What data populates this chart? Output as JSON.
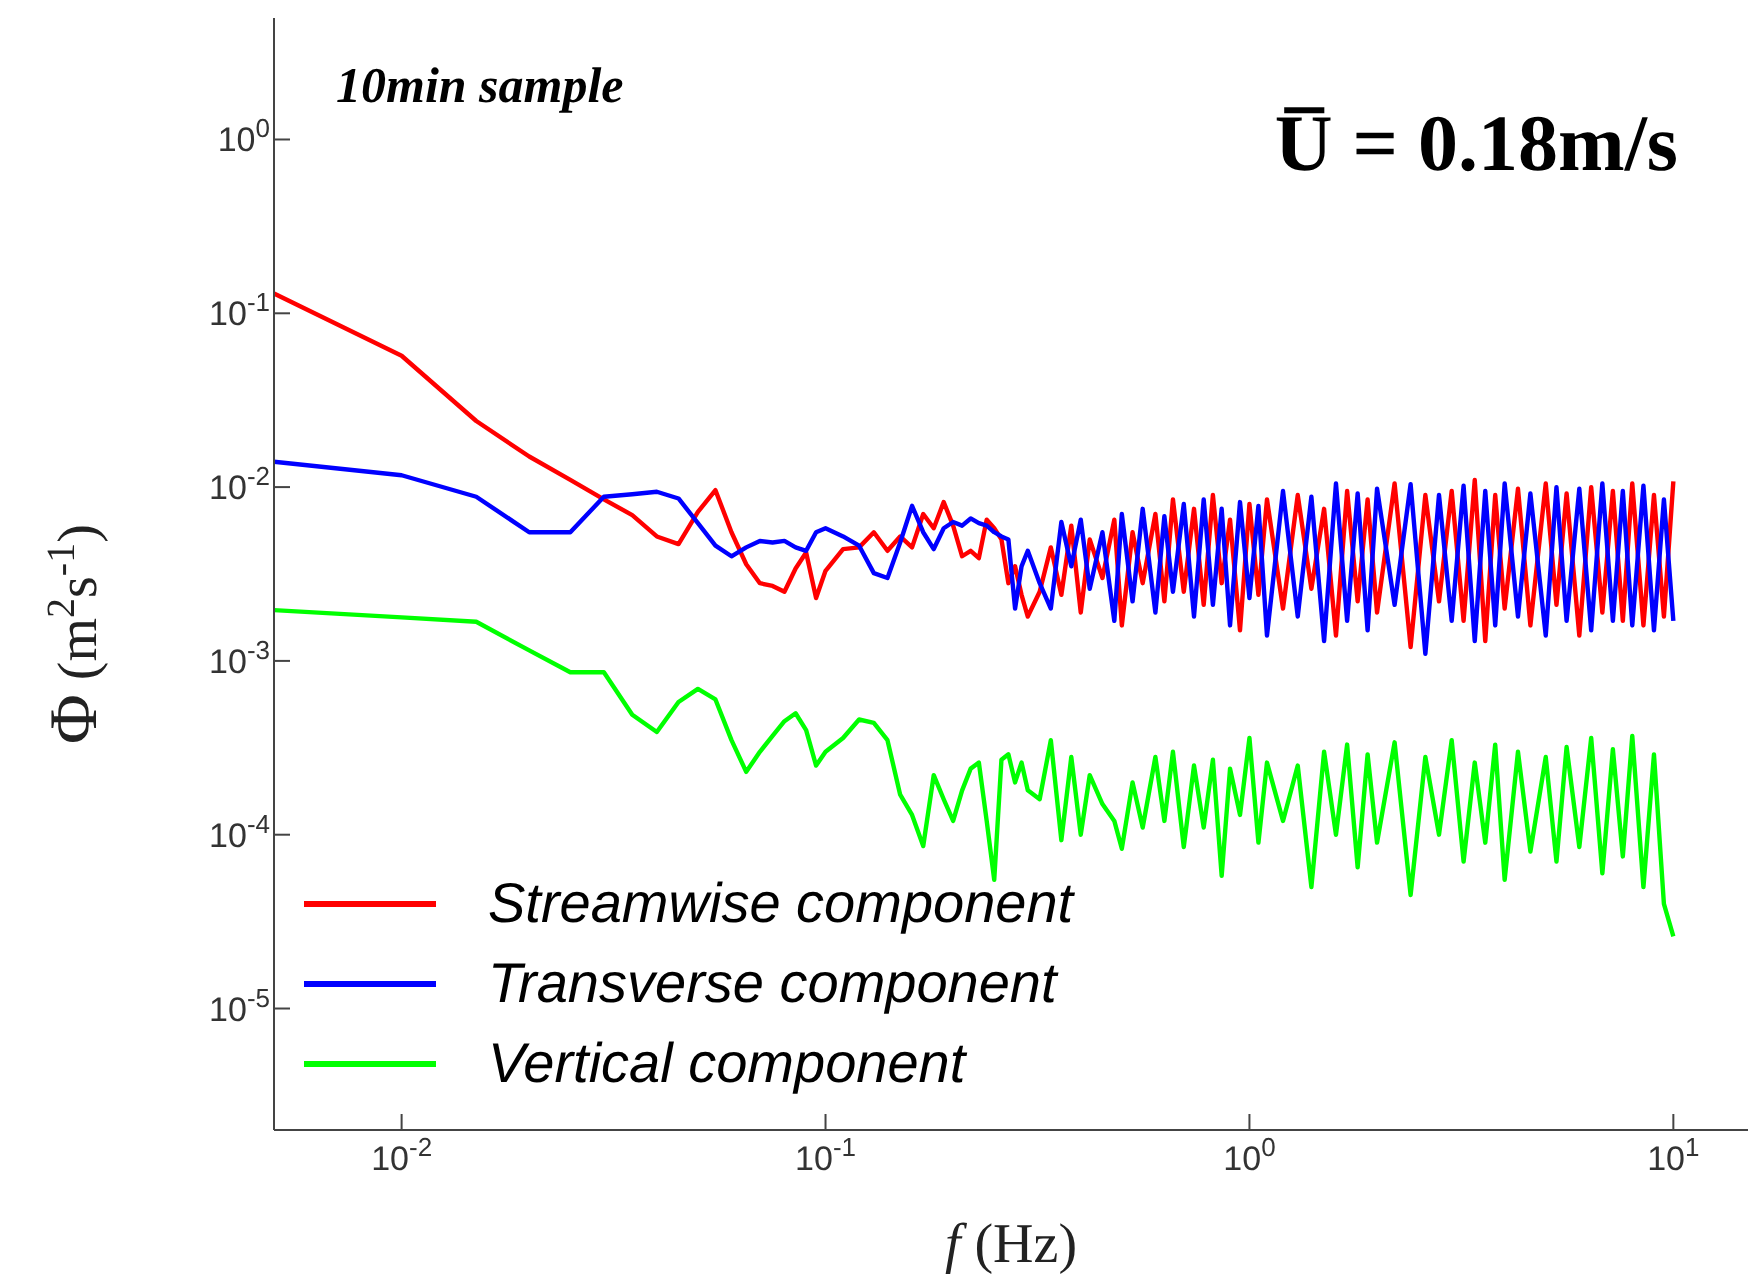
{
  "chart_data": {
    "type": "line",
    "xlabel": "f (Hz)",
    "ylabel": "Φ (m$^{2}$s$^{-1}$)",
    "annotations": [
      "10min sample",
      "U̅ = 0.18m/s"
    ],
    "log": "xy",
    "grid": false,
    "legend": "bottom left",
    "marker": "none",
    "line_style": "solid",
    "xlim": [
      0.005,
      15
    ],
    "xticks": [
      {
        "value": 0.01,
        "label": "10$^{-2}$"
      },
      {
        "value": 0.1,
        "label": "10$^{-1}$"
      },
      {
        "value": 1,
        "label": "10$^{0}$"
      },
      {
        "value": 10,
        "label": "10$^{1}$"
      }
    ],
    "ylim": [
      2e-06,
      5
    ],
    "yticks": [
      {
        "value": 1e-05,
        "label": "10$^{-5}$"
      },
      {
        "value": 0.0001,
        "label": "10$^{-4}$"
      },
      {
        "value": 0.001,
        "label": "10$^{-3}$"
      },
      {
        "value": 0.01,
        "label": "10$^{-2}$"
      },
      {
        "value": 0.1,
        "label": "10$^{-1}$"
      },
      {
        "value": 1,
        "label": "10$^{0}$"
      }
    ],
    "x": [
      0.005,
      0.01,
      0.015,
      0.02,
      0.025,
      0.03,
      0.035,
      0.04,
      0.045,
      0.05,
      0.055,
      0.06,
      0.065,
      0.07,
      0.075,
      0.08,
      0.085,
      0.09,
      0.095,
      0.1,
      0.11,
      0.12,
      0.13,
      0.14,
      0.15,
      0.16,
      0.17,
      0.18,
      0.19,
      0.2,
      0.21,
      0.22,
      0.23,
      0.24,
      0.25,
      0.26,
      0.27,
      0.28,
      0.29,
      0.3,
      0.32,
      0.34,
      0.36,
      0.38,
      0.4,
      0.42,
      0.45,
      0.48,
      0.5,
      0.53,
      0.56,
      0.6,
      0.63,
      0.66,
      0.7,
      0.74,
      0.78,
      0.82,
      0.86,
      0.9,
      0.95,
      1,
      1.05,
      1.1,
      1.2,
      1.3,
      1.4,
      1.5,
      1.6,
      1.7,
      1.8,
      1.9,
      2,
      2.2,
      2.4,
      2.6,
      2.8,
      3,
      3.2,
      3.4,
      3.6,
      3.8,
      4,
      4.3,
      4.6,
      5,
      5.3,
      5.6,
      6,
      6.4,
      6.8,
      7.2,
      7.6,
      8,
      8.5,
      9,
      9.5,
      10
    ],
    "series": [
      {
        "name": "Streamwise component",
        "color": "#ff0000",
        "values": [
          0.13,
          0.057,
          0.024,
          0.015,
          0.011,
          0.0085,
          0.0069,
          0.0052,
          0.0047,
          0.0072,
          0.0096,
          0.0055,
          0.0036,
          0.0028,
          0.0027,
          0.0025,
          0.0034,
          0.0042,
          0.0023,
          0.0033,
          0.0044,
          0.0045,
          0.0055,
          0.0043,
          0.0052,
          0.0045,
          0.007,
          0.0058,
          0.0082,
          0.006,
          0.004,
          0.0043,
          0.0039,
          0.0065,
          0.0058,
          0.005,
          0.0028,
          0.0035,
          0.0024,
          0.0018,
          0.0025,
          0.0045,
          0.0024,
          0.006,
          0.0019,
          0.005,
          0.003,
          0.0065,
          0.0016,
          0.0055,
          0.0028,
          0.007,
          0.0022,
          0.0085,
          0.0025,
          0.0075,
          0.0021,
          0.009,
          0.0028,
          0.0065,
          0.0015,
          0.008,
          0.0024,
          0.0085,
          0.002,
          0.009,
          0.0026,
          0.0075,
          0.0014,
          0.0095,
          0.0022,
          0.0085,
          0.0019,
          0.0105,
          0.0012,
          0.009,
          0.0022,
          0.0095,
          0.0017,
          0.011,
          0.0013,
          0.009,
          0.002,
          0.0098,
          0.0016,
          0.0105,
          0.0021,
          0.0092,
          0.0014,
          0.01,
          0.0019,
          0.0095,
          0.0017,
          0.0105,
          0.0016,
          0.009,
          0.0018,
          0.0108
        ]
      },
      {
        "name": "Transverse component",
        "color": "#0000ff",
        "values": [
          0.014,
          0.0117,
          0.0088,
          0.0055,
          0.0055,
          0.0088,
          0.0091,
          0.0094,
          0.0086,
          0.0062,
          0.0046,
          0.004,
          0.0045,
          0.0049,
          0.0048,
          0.0049,
          0.0045,
          0.0043,
          0.0055,
          0.0058,
          0.0052,
          0.0046,
          0.0032,
          0.003,
          0.0048,
          0.0078,
          0.0055,
          0.0044,
          0.0058,
          0.0063,
          0.006,
          0.0066,
          0.0062,
          0.006,
          0.0055,
          0.0052,
          0.005,
          0.002,
          0.0035,
          0.0043,
          0.0028,
          0.002,
          0.0063,
          0.0035,
          0.0065,
          0.0026,
          0.0055,
          0.0017,
          0.007,
          0.0022,
          0.0075,
          0.0019,
          0.0068,
          0.0025,
          0.008,
          0.0018,
          0.0085,
          0.0021,
          0.0075,
          0.0016,
          0.0082,
          0.0023,
          0.0078,
          0.0014,
          0.0095,
          0.0018,
          0.0088,
          0.0013,
          0.0105,
          0.0017,
          0.0092,
          0.0015,
          0.0098,
          0.0021,
          0.0104,
          0.0011,
          0.009,
          0.0017,
          0.0102,
          0.0013,
          0.0095,
          0.0016,
          0.0105,
          0.0018,
          0.0092,
          0.0014,
          0.01,
          0.0017,
          0.0098,
          0.0015,
          0.0105,
          0.0017,
          0.0095,
          0.0016,
          0.0102,
          0.0015,
          0.0085,
          0.0017
        ]
      },
      {
        "name": "Vertical component",
        "color": "#00ff00",
        "values": [
          0.00196,
          0.00178,
          0.00168,
          0.00115,
          0.00086,
          0.00086,
          0.00049,
          0.00039,
          0.00058,
          0.00069,
          0.0006,
          0.00035,
          0.00023,
          0.0003,
          0.00037,
          0.00045,
          0.0005,
          0.0004,
          0.00025,
          0.0003,
          0.00036,
          0.00046,
          0.00044,
          0.00035,
          0.00017,
          0.00013,
          8.6e-05,
          0.00022,
          0.00016,
          0.00012,
          0.00018,
          0.00024,
          0.00026,
          0.00012,
          5.5e-05,
          0.00027,
          0.00029,
          0.0002,
          0.00026,
          0.00018,
          0.00016,
          0.00035,
          9.3e-05,
          0.00028,
          0.0001,
          0.00022,
          0.00015,
          0.00012,
          8.3e-05,
          0.0002,
          0.00011,
          0.00028,
          0.00012,
          0.0003,
          8.5e-05,
          0.00025,
          0.00011,
          0.00027,
          5.8e-05,
          0.00024,
          0.00013,
          0.00036,
          9e-05,
          0.00026,
          0.00012,
          0.00025,
          5e-05,
          0.0003,
          0.0001,
          0.00033,
          6.5e-05,
          0.00029,
          9e-05,
          0.00034,
          4.5e-05,
          0.00028,
          0.0001,
          0.00035,
          7e-05,
          0.00026,
          9e-05,
          0.00033,
          5.5e-05,
          0.0003,
          8e-05,
          0.00028,
          7e-05,
          0.00032,
          8.5e-05,
          0.00036,
          6e-05,
          0.00031,
          7.5e-05,
          0.00037,
          5e-05,
          0.00029,
          4e-05,
          2.6e-05
        ]
      }
    ]
  }
}
